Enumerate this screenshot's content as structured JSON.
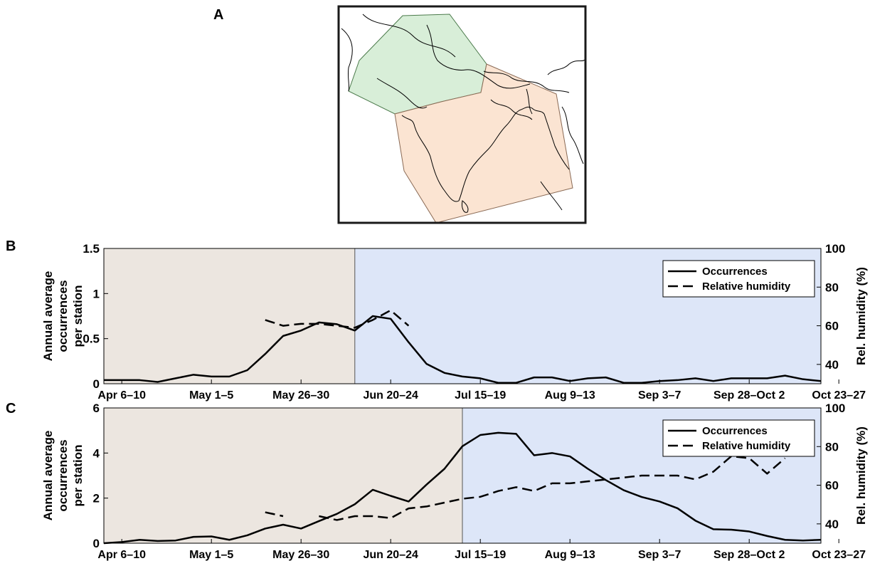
{
  "panel_labels": [
    "A",
    "B",
    "C"
  ],
  "colors": {
    "dry_season_shade": "#ece6e0",
    "monsoon_shade": "#dde6f8",
    "map_region_north": "#d8eed8",
    "map_region_south": "#fbe4d2",
    "line": "#000000"
  },
  "chart_data": [
    {
      "type": "line",
      "panel": "B",
      "x_tick_labels": [
        "Apr 6–10",
        "May 1–5",
        "May 26–30",
        "Jun 20–24",
        "Jul 15–19",
        "Aug 9–13",
        "Sep 3–7",
        "Sep 28–Oct 2",
        "Oct 23–27"
      ],
      "x_count": 41,
      "ylabel": "Annual average occurrences per station",
      "ylabel_lines": [
        "Annual average",
        "occurrences",
        "per station"
      ],
      "ylim": [
        0,
        1.5
      ],
      "yticks": [
        0,
        0.5,
        1,
        1.5
      ],
      "ytick_labels": [
        "0",
        "0.5",
        "1",
        "1.5"
      ],
      "y2label": "Rel. humidity (%)",
      "y2lim": [
        30,
        100
      ],
      "y2ticks": [
        40,
        60,
        80,
        100
      ],
      "shade_split_index": 14,
      "legend": {
        "position": "top-right",
        "entries": [
          "Occurrences",
          "Relative humidity"
        ]
      },
      "series": [
        {
          "name": "Occurrences",
          "axis": "left",
          "style": "solid",
          "values": [
            0.04,
            0.04,
            0.04,
            0.02,
            0.06,
            0.1,
            0.08,
            0.08,
            0.15,
            0.33,
            0.53,
            0.59,
            0.68,
            0.66,
            0.59,
            0.75,
            0.72,
            0.46,
            0.22,
            0.12,
            0.08,
            0.06,
            0.01,
            0.01,
            0.07,
            0.07,
            0.03,
            0.06,
            0.07,
            0.01,
            0.01,
            0.03,
            0.04,
            0.06,
            0.03,
            0.06,
            0.06,
            0.06,
            0.09,
            0.05,
            0.03
          ]
        },
        {
          "name": "Relative humidity",
          "axis": "right",
          "style": "dashed",
          "segments": [
            {
              "start": 9,
              "values": [
                63,
                60,
                61,
                61,
                60,
                59,
                63,
                68,
                60
              ]
            }
          ]
        }
      ]
    },
    {
      "type": "line",
      "panel": "C",
      "x_tick_labels": [
        "Apr 6–10",
        "May 1–5",
        "May 26–30",
        "Jun 20–24",
        "Jul 15–19",
        "Aug 9–13",
        "Sep 3–7",
        "Sep 28–Oct 2",
        "Oct 23–27"
      ],
      "x_count": 41,
      "ylabel": "Annual average occurrences per station",
      "ylabel_lines": [
        "Annual average",
        "occurrences",
        "per station"
      ],
      "ylim": [
        0,
        6
      ],
      "yticks": [
        0,
        2,
        4,
        6
      ],
      "ytick_labels": [
        "0",
        "2",
        "4",
        "6"
      ],
      "y2label": "Rel. humidity (%)",
      "y2lim": [
        30,
        100
      ],
      "y2ticks": [
        40,
        60,
        80,
        100
      ],
      "shade_split_index": 20,
      "legend": {
        "position": "top-right",
        "entries": [
          "Occurrences",
          "Relative humidity"
        ]
      },
      "series": [
        {
          "name": "Occurrences",
          "axis": "left",
          "style": "solid",
          "values": [
            0.0,
            0.05,
            0.15,
            0.1,
            0.12,
            0.28,
            0.3,
            0.15,
            0.35,
            0.65,
            0.82,
            0.65,
            0.98,
            1.3,
            1.73,
            2.37,
            2.1,
            1.85,
            2.6,
            3.3,
            4.3,
            4.8,
            4.9,
            4.85,
            3.9,
            4.0,
            3.85,
            3.3,
            2.8,
            2.35,
            2.05,
            1.85,
            1.55,
            1.0,
            0.62,
            0.6,
            0.52,
            0.32,
            0.15,
            0.12,
            0.15
          ]
        },
        {
          "name": "Relative humidity",
          "axis": "right",
          "style": "dashed",
          "segments": [
            {
              "start": 9,
              "values": [
                46,
                44
              ]
            },
            {
              "start": 12,
              "values": [
                44,
                42,
                44,
                44,
                43,
                48,
                49,
                51,
                53,
                54,
                57,
                59,
                57,
                61,
                61,
                62,
                63,
                64,
                65,
                65,
                65,
                63,
                67,
                75,
                74,
                66,
                74
              ]
            }
          ]
        }
      ]
    }
  ]
}
